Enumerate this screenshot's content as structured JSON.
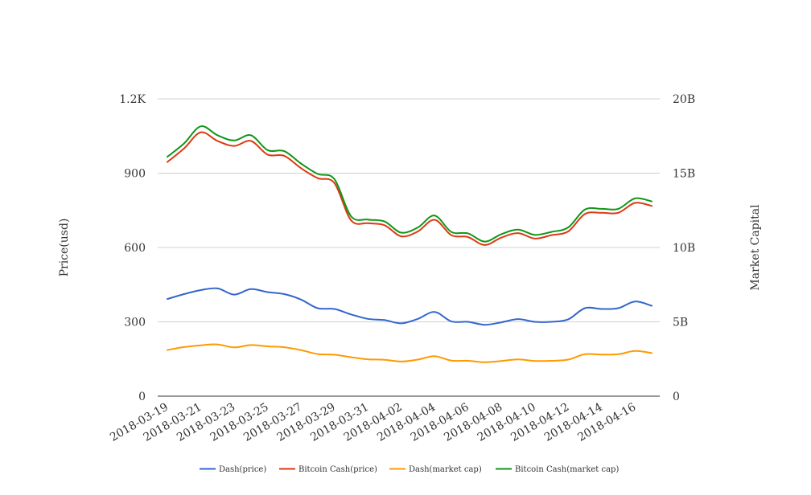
{
  "chart_data": {
    "type": "line",
    "x": [
      "2018-03-19",
      "2018-03-20",
      "2018-03-21",
      "2018-03-22",
      "2018-03-23",
      "2018-03-24",
      "2018-03-25",
      "2018-03-26",
      "2018-03-27",
      "2018-03-28",
      "2018-03-29",
      "2018-03-30",
      "2018-03-31",
      "2018-04-01",
      "2018-04-02",
      "2018-04-03",
      "2018-04-04",
      "2018-04-05",
      "2018-04-06",
      "2018-04-07",
      "2018-04-08",
      "2018-04-09",
      "2018-04-10",
      "2018-04-11",
      "2018-04-12",
      "2018-04-13",
      "2018-04-14",
      "2018-04-15",
      "2018-04-16",
      "2018-04-17"
    ],
    "x_tick_labels": [
      "2018-03-19",
      "2018-03-21",
      "2018-03-23",
      "2018-03-25",
      "2018-03-27",
      "2018-03-29",
      "2018-03-31",
      "2018-04-02",
      "2018-04-04",
      "2018-04-06",
      "2018-04-08",
      "2018-04-10",
      "2018-04-12",
      "2018-04-14",
      "2018-04-16"
    ],
    "y_left": {
      "label": "Price(usd)",
      "ticks": [
        "0",
        "300",
        "600",
        "900",
        "1.2K"
      ],
      "range": [
        0,
        1200
      ]
    },
    "y_right": {
      "label": "Market Capital",
      "ticks": [
        "0",
        "5B",
        "10B",
        "15B",
        "20B"
      ],
      "range": [
        0,
        20000000000
      ]
    },
    "grid": true,
    "legend_position": "bottom",
    "series": [
      {
        "name": "Dash(price)",
        "axis": "left",
        "color": "#3366cc",
        "values": [
          392,
          412,
          428,
          435,
          410,
          432,
          420,
          412,
          390,
          355,
          352,
          330,
          312,
          307,
          294,
          312,
          340,
          302,
          300,
          288,
          298,
          311,
          300,
          300,
          310,
          355,
          352,
          355,
          382,
          365
        ]
      },
      {
        "name": "Bitcoin Cash(price)",
        "axis": "left",
        "color": "#dc3912",
        "values": [
          945,
          1000,
          1065,
          1030,
          1010,
          1030,
          975,
          970,
          920,
          880,
          860,
          710,
          698,
          690,
          645,
          665,
          712,
          650,
          642,
          610,
          640,
          658,
          636,
          650,
          665,
          735,
          740,
          740,
          780,
          768
        ]
      },
      {
        "name": "Dash(market cap)",
        "axis": "right",
        "color": "#ff9900",
        "values": [
          3100000000,
          3300000000,
          3420000000,
          3480000000,
          3280000000,
          3440000000,
          3350000000,
          3290000000,
          3100000000,
          2830000000,
          2790000000,
          2620000000,
          2480000000,
          2450000000,
          2330000000,
          2460000000,
          2690000000,
          2390000000,
          2380000000,
          2280000000,
          2370000000,
          2470000000,
          2370000000,
          2380000000,
          2460000000,
          2820000000,
          2800000000,
          2820000000,
          3040000000,
          2900000000
        ]
      },
      {
        "name": "Bitcoin Cash(market cap)",
        "axis": "right",
        "color": "#109618",
        "values": [
          16100000000,
          17000000000,
          18150000000,
          17550000000,
          17200000000,
          17550000000,
          16550000000,
          16480000000,
          15650000000,
          14950000000,
          14600000000,
          12100000000,
          11880000000,
          11750000000,
          11000000000,
          11350000000,
          12150000000,
          11050000000,
          10950000000,
          10400000000,
          10900000000,
          11200000000,
          10850000000,
          11050000000,
          11350000000,
          12550000000,
          12600000000,
          12600000000,
          13300000000,
          13100000000
        ]
      }
    ]
  }
}
